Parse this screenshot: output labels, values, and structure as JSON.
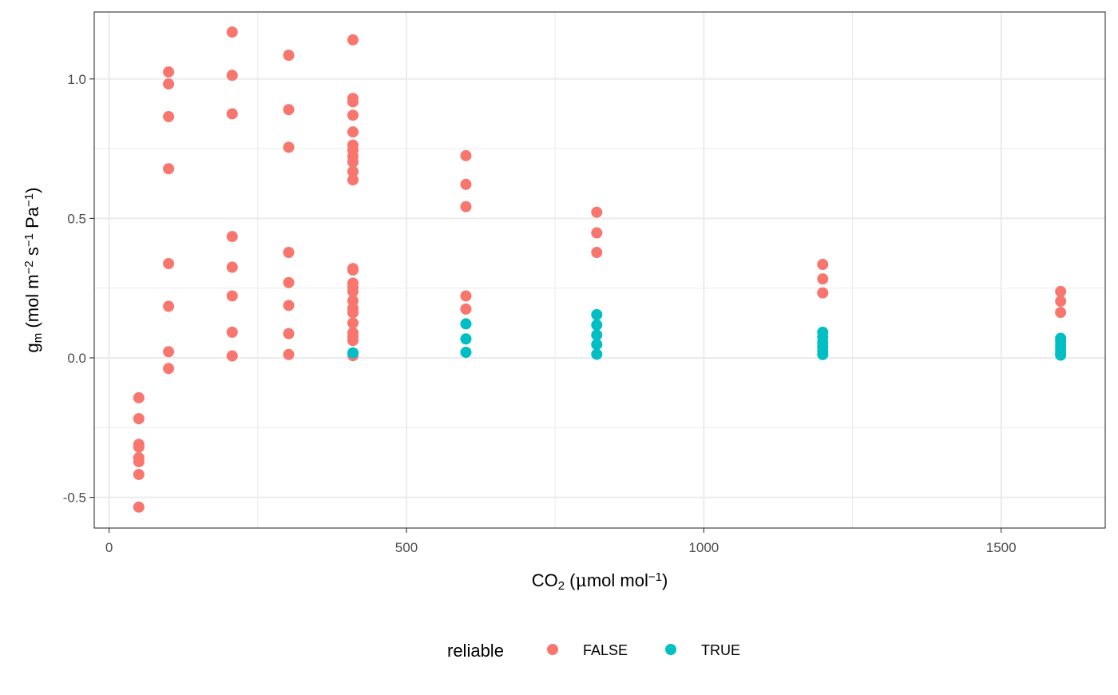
{
  "chart_data": {
    "type": "scatter",
    "title": "",
    "xlabel": {
      "base": "CO",
      "sub": "2",
      "post": " (",
      "mu": "μ",
      "rest": "mol mol",
      "sup": "−1",
      "close": ")"
    },
    "ylabel": {
      "base": "g",
      "sub": "m",
      "rest1": " (mol m",
      "sup1": "−2",
      "rest2": " s",
      "sup2": "−1",
      "rest3": " Pa",
      "sup3": "−1",
      "close": ")"
    },
    "xlim": [
      -25,
      1675
    ],
    "ylim": [
      -0.61,
      1.24
    ],
    "x_ticks": [
      {
        "value": 0,
        "label": "0"
      },
      {
        "value": 500,
        "label": "500"
      },
      {
        "value": 1000,
        "label": "1000"
      },
      {
        "value": 1500,
        "label": "1500"
      }
    ],
    "x_minor": [
      250,
      750,
      1250
    ],
    "y_ticks": [
      {
        "value": -0.5,
        "label": "-0.5"
      },
      {
        "value": 0.0,
        "label": "0.0"
      },
      {
        "value": 0.5,
        "label": "0.5"
      },
      {
        "value": 1.0,
        "label": "1.0"
      }
    ],
    "y_minor": [
      -0.25,
      0.25,
      0.75
    ],
    "grid": true,
    "legend": {
      "title": "reliable",
      "position": "bottom",
      "entries": [
        {
          "label": "FALSE",
          "color": "#F8766D"
        },
        {
          "label": "TRUE",
          "color": "#00BFC4"
        }
      ]
    },
    "series": [
      {
        "name": "FALSE",
        "color": "#F8766D",
        "points": [
          [
            50,
            -0.143
          ],
          [
            50,
            -0.218
          ],
          [
            50,
            -0.31
          ],
          [
            50,
            -0.32
          ],
          [
            50,
            -0.358
          ],
          [
            50,
            -0.372
          ],
          [
            50,
            -0.418
          ],
          [
            50,
            -0.535
          ],
          [
            100,
            1.025
          ],
          [
            100,
            0.982
          ],
          [
            100,
            0.865
          ],
          [
            100,
            0.678
          ],
          [
            100,
            0.338
          ],
          [
            100,
            0.185
          ],
          [
            100,
            0.022
          ],
          [
            100,
            -0.038
          ],
          [
            207,
            1.168
          ],
          [
            207,
            1.013
          ],
          [
            207,
            0.875
          ],
          [
            207,
            0.435
          ],
          [
            207,
            0.325
          ],
          [
            207,
            0.222
          ],
          [
            207,
            0.092
          ],
          [
            207,
            0.007
          ],
          [
            302,
            1.085
          ],
          [
            302,
            0.89
          ],
          [
            302,
            0.755
          ],
          [
            302,
            0.378
          ],
          [
            302,
            0.27
          ],
          [
            302,
            0.188
          ],
          [
            302,
            0.087
          ],
          [
            302,
            0.012
          ],
          [
            410,
            1.14
          ],
          [
            410,
            0.93
          ],
          [
            410,
            0.918
          ],
          [
            410,
            0.87
          ],
          [
            410,
            0.81
          ],
          [
            410,
            0.763
          ],
          [
            410,
            0.745
          ],
          [
            410,
            0.722
          ],
          [
            410,
            0.702
          ],
          [
            410,
            0.668
          ],
          [
            410,
            0.638
          ],
          [
            410,
            0.32
          ],
          [
            410,
            0.315
          ],
          [
            410,
            0.268
          ],
          [
            410,
            0.253
          ],
          [
            410,
            0.238
          ],
          [
            410,
            0.205
          ],
          [
            410,
            0.178
          ],
          [
            410,
            0.162
          ],
          [
            410,
            0.125
          ],
          [
            410,
            0.09
          ],
          [
            410,
            0.075
          ],
          [
            410,
            0.062
          ],
          [
            410,
            0.008
          ],
          [
            600,
            0.725
          ],
          [
            600,
            0.622
          ],
          [
            600,
            0.542
          ],
          [
            600,
            0.222
          ],
          [
            600,
            0.175
          ],
          [
            820,
            0.522
          ],
          [
            820,
            0.448
          ],
          [
            820,
            0.378
          ],
          [
            1200,
            0.335
          ],
          [
            1200,
            0.283
          ],
          [
            1200,
            0.233
          ],
          [
            1600,
            0.238
          ],
          [
            1600,
            0.203
          ],
          [
            1600,
            0.163
          ]
        ]
      },
      {
        "name": "TRUE",
        "color": "#00BFC4",
        "points": [
          [
            410,
            0.018
          ],
          [
            600,
            0.122
          ],
          [
            600,
            0.068
          ],
          [
            600,
            0.02
          ],
          [
            820,
            0.155
          ],
          [
            820,
            0.118
          ],
          [
            820,
            0.082
          ],
          [
            820,
            0.048
          ],
          [
            820,
            0.013
          ],
          [
            1200,
            0.092
          ],
          [
            1200,
            0.075
          ],
          [
            1200,
            0.056
          ],
          [
            1200,
            0.04
          ],
          [
            1200,
            0.025
          ],
          [
            1200,
            0.012
          ],
          [
            1600,
            0.07
          ],
          [
            1600,
            0.058
          ],
          [
            1600,
            0.044
          ],
          [
            1600,
            0.03
          ],
          [
            1600,
            0.015
          ],
          [
            1600,
            0.01
          ]
        ]
      }
    ]
  }
}
